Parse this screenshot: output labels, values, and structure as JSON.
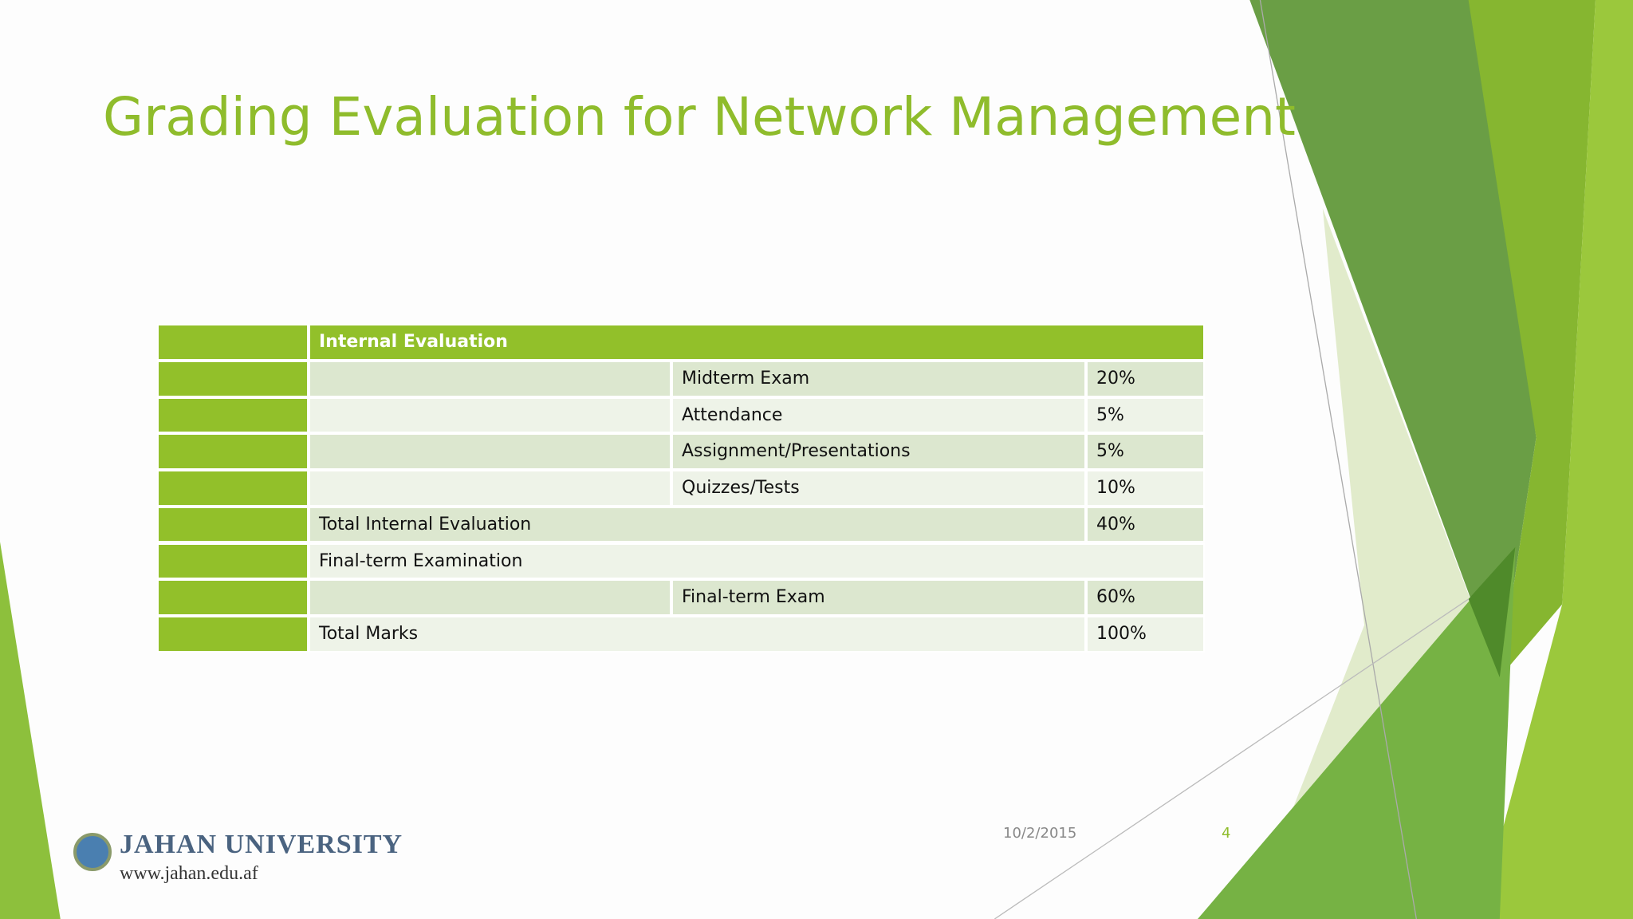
{
  "header": {
    "title": "Grading Evaluation for Network Management"
  },
  "table": {
    "heading": "Internal Evaluation",
    "rows": [
      {
        "item": "Midterm Exam",
        "weight": "20%"
      },
      {
        "item": "Attendance",
        "weight": "5%"
      },
      {
        "item": "Assignment/Presentations",
        "weight": "5%"
      },
      {
        "item": "Quizzes/Tests",
        "weight": "10%"
      },
      {
        "label": "Total Internal Evaluation",
        "weight": "40%"
      },
      {
        "label": "Final-term Examination"
      },
      {
        "item": "Final-term Exam",
        "weight": "60%"
      },
      {
        "label": "Total Marks",
        "weight": "100%"
      }
    ]
  },
  "footer": {
    "date": "10/2/2015",
    "page": "4"
  },
  "logo": {
    "name": "JAHAN UNIVERSITY",
    "url": "www.jahan.edu.af"
  }
}
